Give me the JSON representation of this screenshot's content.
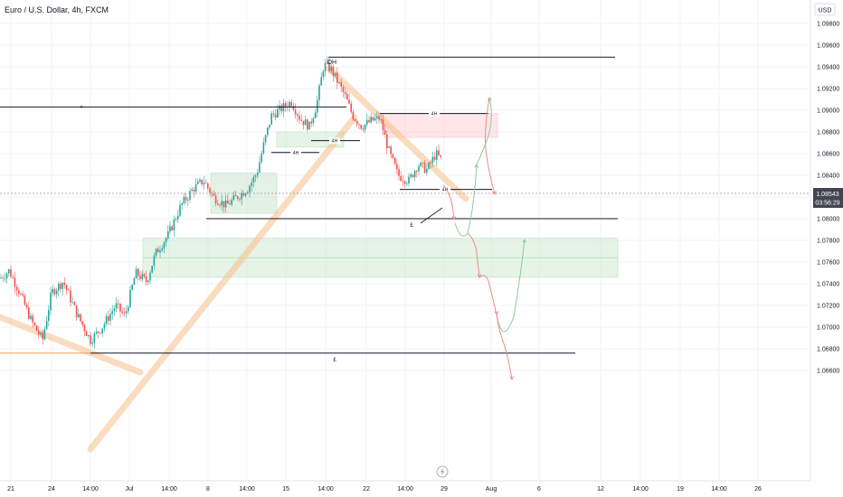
{
  "header": {
    "symbol_title": "Euro / U.S. Dollar, 4h, FXCM",
    "currency_label": "USD"
  },
  "price_axis": {
    "ticks": [
      "1.09800",
      "1.09600",
      "1.09400",
      "1.09200",
      "1.09000",
      "1.08800",
      "1.08600",
      "1.08400",
      "1.08200",
      "1.08000",
      "1.07800",
      "1.07600",
      "1.07400",
      "1.07200",
      "1.07000",
      "1.06800",
      "1.06600"
    ],
    "last_price": "1.08543",
    "countdown": "03:56:29"
  },
  "time_axis": {
    "ticks": [
      "21",
      "24",
      "14:00",
      "Jul",
      "14:00",
      "8",
      "14:00",
      "15",
      "14:00",
      "22",
      "14:00",
      "29",
      "Aug",
      "6",
      "12",
      "14:00",
      "19",
      "14:00",
      "26"
    ]
  },
  "annotations": {
    "dh_label": "DH",
    "level_labels": [
      "£",
      "£",
      "4H",
      "4H",
      "4H",
      "4H",
      "4H"
    ]
  },
  "colors": {
    "bull": "#26a69a",
    "bear": "#ef5350",
    "trendline": "#f7c08a",
    "demand_zone": "#c8e6c9",
    "supply_zone": "#ffcdd2",
    "level": "#131722",
    "axis_text": "#131722",
    "grid": "#f0f3fa"
  },
  "chart_data": {
    "type": "candlestick",
    "title": "Euro / U.S. Dollar, 4h, FXCM",
    "currency": "USD",
    "ylim": [
      1.065,
      1.099
    ],
    "last_price": 1.08543,
    "key_levels": [
      {
        "price": 1.0949,
        "label": "DH"
      },
      {
        "price": 1.0903
      },
      {
        "price": 1.08,
        "label": "£"
      },
      {
        "price": 1.0676,
        "label": "£"
      },
      {
        "price": 1.0897,
        "label": "4H"
      },
      {
        "price": 1.0872,
        "label": "4H"
      },
      {
        "price": 1.0861,
        "label": "4H"
      },
      {
        "price": 1.0827,
        "label": "4H"
      }
    ],
    "zones": [
      {
        "type": "supply",
        "from": 1.0875,
        "to": 1.0897
      },
      {
        "type": "demand",
        "from": 1.0746,
        "to": 1.0782
      },
      {
        "type": "demand",
        "from": 1.0805,
        "to": 1.0842
      },
      {
        "type": "demand",
        "from": 1.0866,
        "to": 1.088
      }
    ],
    "projection_scenarios": [
      "bullish",
      "bearish"
    ]
  }
}
